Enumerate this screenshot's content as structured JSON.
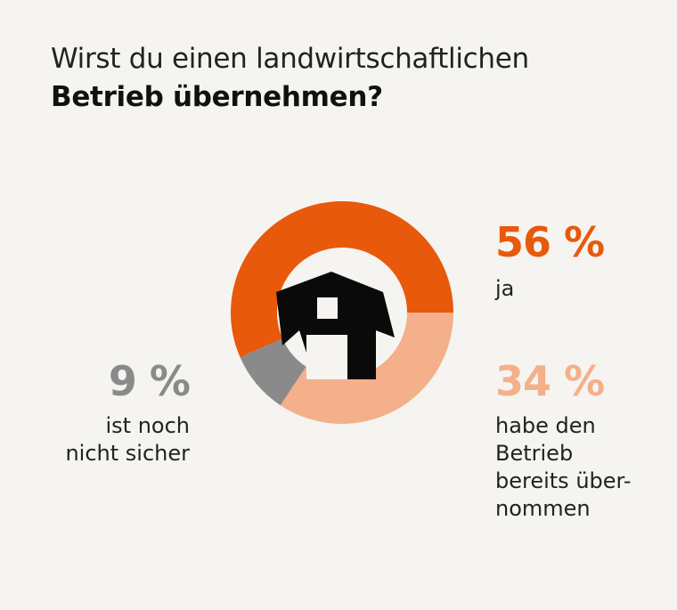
{
  "title": {
    "line1": "Wirst du einen landwirtschaftlichen",
    "line2": "Betrieb übernehmen?"
  },
  "colors": {
    "ja": "#e8590c",
    "bereits": "#f4b08a",
    "unsicher": "#8b8a8a",
    "background": "#f5f4f0",
    "icon": "#0a0a0a"
  },
  "icon": "barn-icon",
  "chart_data": {
    "type": "pie",
    "title": "Wirst du einen landwirtschaftlichen Betrieb übernehmen?",
    "series": [
      {
        "name": "ja",
        "values": [
          56
        ],
        "label": "56 %",
        "description": "ja",
        "color": "#e8590c"
      },
      {
        "name": "habe den Betrieb bereits übernommen",
        "values": [
          34
        ],
        "label": "34 %",
        "description": "habe den Betrieb bereits über-nommen",
        "color": "#f4b08a"
      },
      {
        "name": "ist noch nicht sicher",
        "values": [
          9
        ],
        "label": "9 %",
        "description": "ist noch nicht sicher",
        "color": "#8b8a8a"
      }
    ]
  },
  "labels": {
    "ja_pct": "56 %",
    "ja_desc": "ja",
    "bereits_pct": "34 %",
    "bereits_desc_1": "habe den",
    "bereits_desc_2": "Betrieb",
    "bereits_desc_3": "bereits über-",
    "bereits_desc_4": "nommen",
    "unsicher_pct": "9 %",
    "unsicher_desc_1": "ist noch",
    "unsicher_desc_2": "nicht sicher"
  }
}
